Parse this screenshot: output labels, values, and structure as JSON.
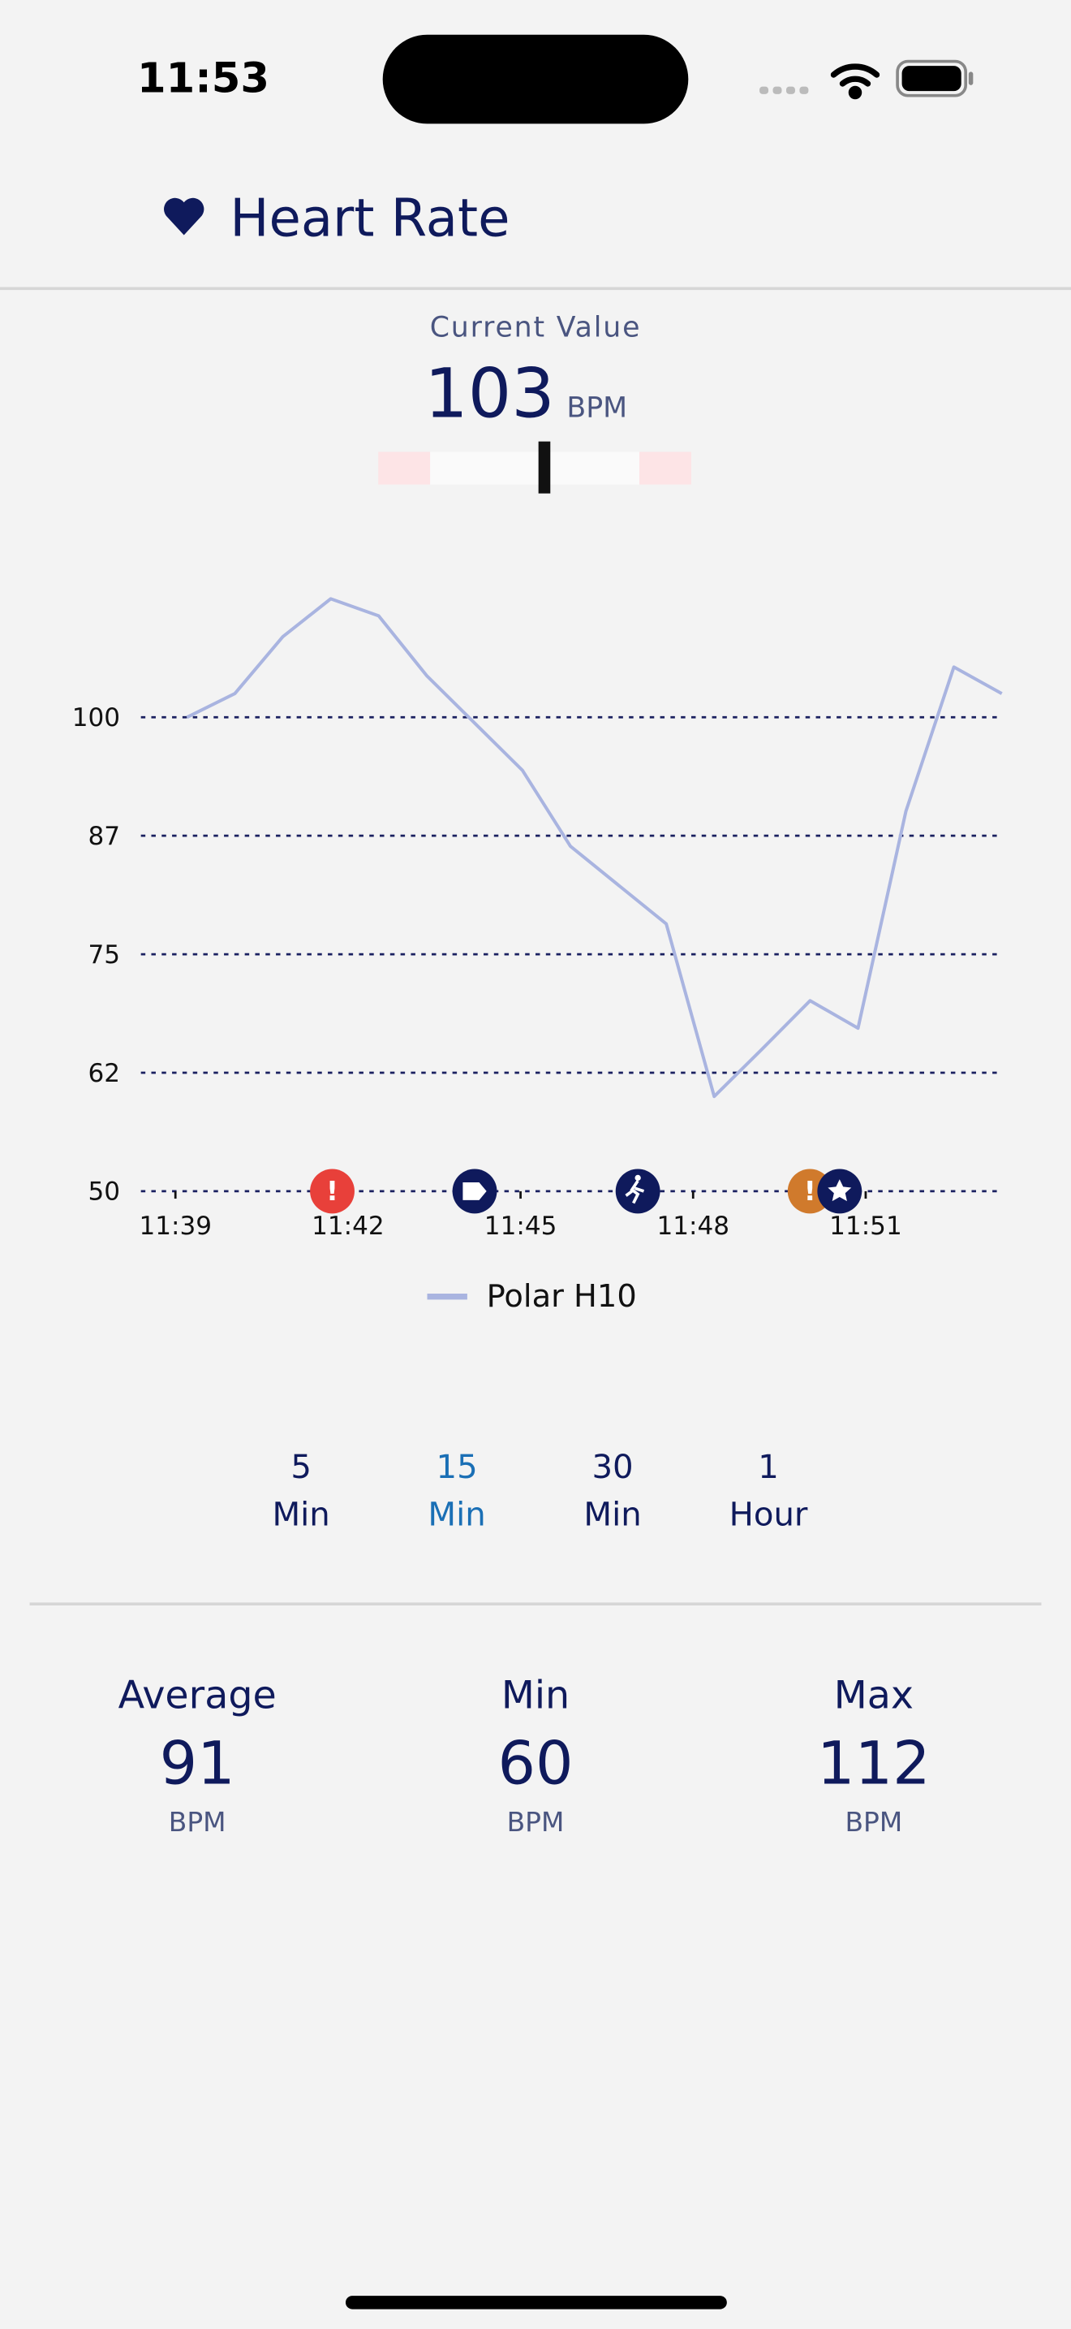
{
  "status_bar": {
    "time": "11:53"
  },
  "header": {
    "title": "Heart Rate"
  },
  "current_value": {
    "label": "Current Value",
    "value": 103,
    "unit": "BPM"
  },
  "chart_data": {
    "type": "line",
    "x": [
      "11:39:12",
      "11:40:02",
      "11:40:52",
      "11:41:42",
      "11:42:32",
      "11:43:22",
      "11:44:12",
      "11:45:02",
      "11:45:52",
      "11:46:42",
      "11:47:32",
      "11:48:22",
      "11:49:12",
      "11:50:02",
      "11:50:52",
      "11:51:42",
      "11:52:32",
      "11:53:22"
    ],
    "series": [
      {
        "name": "Polar H10",
        "color": "#a9b4e0",
        "values": [
          100,
          102.5,
          108.5,
          112.5,
          110.7,
          104.4,
          99.4,
          94.4,
          86.4,
          82.3,
          78.2,
          60,
          65,
          70.1,
          67.2,
          90.1,
          105.3,
          102.5
        ]
      }
    ],
    "xlim": [
      "11:38:24",
      "11:53:23"
    ],
    "xticks": [
      {
        "value": "11:39:00",
        "label": "11:39"
      },
      {
        "value": "11:42:00",
        "label": "11:42"
      },
      {
        "value": "11:45:00",
        "label": "11:45"
      },
      {
        "value": "11:48:00",
        "label": "11:48"
      },
      {
        "value": "11:51:00",
        "label": "11:51"
      }
    ],
    "ylim": [
      50,
      115
    ],
    "yticks": [
      50,
      {
        "value": 62.5,
        "label": "62"
      },
      75,
      {
        "value": 87.5,
        "label": "87"
      },
      100
    ],
    "grid": true
  },
  "range_options": [
    {
      "value": "5",
      "unit": "Min",
      "selected": false
    },
    {
      "value": "15",
      "unit": "Min",
      "selected": true
    },
    {
      "value": "30",
      "unit": "Min",
      "selected": false
    },
    {
      "value": "1",
      "unit": "Hour",
      "selected": false
    }
  ],
  "stats": [
    {
      "label": "Average",
      "value": 91,
      "unit": "BPM"
    },
    {
      "label": "Min",
      "value": 60,
      "unit": "BPM"
    },
    {
      "label": "Max",
      "value": 112,
      "unit": "BPM"
    }
  ]
}
